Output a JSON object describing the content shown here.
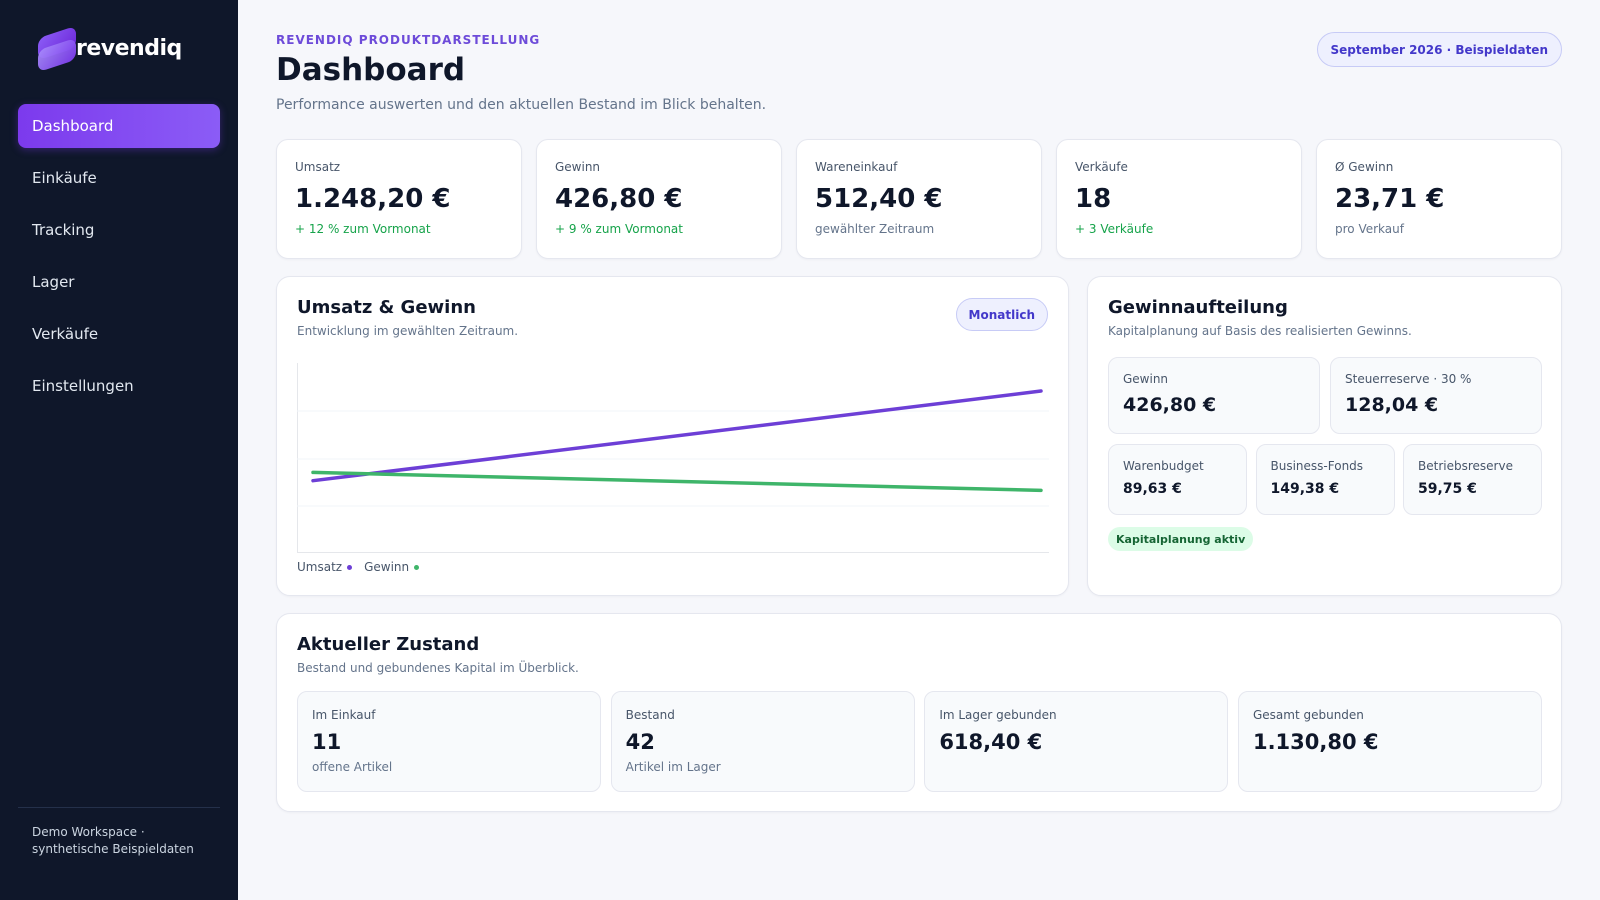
{
  "app": {
    "name": "revendiq"
  },
  "sidebar": {
    "items": [
      {
        "label": "Dashboard",
        "active": true
      },
      {
        "label": "Einkäufe"
      },
      {
        "label": "Tracking"
      },
      {
        "label": "Lager"
      },
      {
        "label": "Verkäufe"
      },
      {
        "label": "Einstellungen"
      }
    ],
    "footer": {
      "line1": "Demo Workspace ·",
      "line2": "synthetische Beispieldaten"
    }
  },
  "header": {
    "eyebrow": "REVENDIQ PRODUKTDARSTELLUNG",
    "title": "Dashboard",
    "subtitle": "Performance auswerten und den aktuellen Bestand im Blick behalten.",
    "period_badge": "September 2026 · Beispieldaten"
  },
  "kpis": [
    {
      "label": "Umsatz",
      "value": "1.248,20 €",
      "note": "+ 12 % zum Vormonat"
    },
    {
      "label": "Gewinn",
      "value": "426,80 €",
      "note": "+ 9 % zum Vormonat"
    },
    {
      "label": "Wareneinkauf",
      "value": "512,40 €",
      "note": "gewählter Zeitraum"
    },
    {
      "label": "Verkäufe",
      "value": "18",
      "note": "+ 3 Verkäufe"
    },
    {
      "label": "Ø Gewinn",
      "value": "23,71 €",
      "note": "pro Verkauf"
    }
  ],
  "chart_card": {
    "title": "Umsatz & Gewinn",
    "subtitle": "Entwicklung im gewählten Zeitraum.",
    "toggle_label": "Monatlich"
  },
  "chart_data": {
    "type": "line",
    "series": [
      {
        "name": "Umsatz",
        "color": "#6d3fd6",
        "values": [
          0.35,
          1.0
        ]
      },
      {
        "name": "Gewinn",
        "color": "#3fb56a",
        "values": [
          0.41,
          0.28
        ]
      }
    ],
    "grid": true,
    "legend": "bottom-left"
  },
  "split_card": {
    "title": "Gewinnaufteilung",
    "subtitle": "Kapitalplanung auf Basis des realisierten Gewinns.",
    "profit": {
      "label": "Gewinn",
      "value": "426,80 €"
    },
    "tax": {
      "label": "Steuerreserve · 30 %",
      "value": "128,04 €"
    },
    "goods": {
      "label": "Warenbudget",
      "value": "89,63 €"
    },
    "fund": {
      "label": "Business-Fonds",
      "value": "149,38 €"
    },
    "reserve": {
      "label": "Betriebsreserve",
      "value": "59,75 €"
    },
    "badge": "Kapitalplanung aktiv"
  },
  "status_card": {
    "title": "Aktueller Zustand",
    "subtitle": "Bestand und gebundenes Kapital im Überblick.",
    "items": [
      {
        "label": "Im Einkauf",
        "value": "11",
        "note": "offene Artikel"
      },
      {
        "label": "Bestand",
        "value": "42",
        "note": "Artikel im Lager"
      },
      {
        "label": "Im Lager gebunden",
        "value": "618,40 €"
      },
      {
        "label": "Gesamt gebunden",
        "value": "1.130,80 €"
      }
    ]
  }
}
